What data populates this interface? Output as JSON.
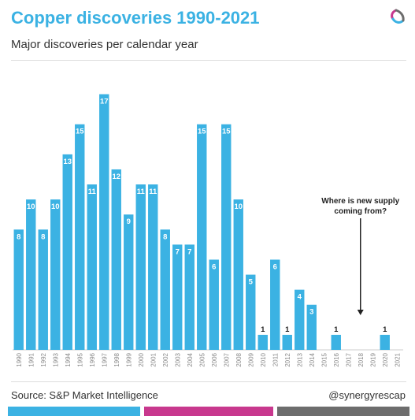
{
  "header": {
    "title": "Copper discoveries 1990-2021",
    "subtitle": "Major discoveries per calendar year"
  },
  "footer": {
    "source": "Source: S&P Market Intelligence",
    "handle": "@synergyrescap"
  },
  "colors": {
    "bar": "#3bb2e3",
    "title": "#3bb2e3",
    "stripe_blue": "#3bb2e3",
    "stripe_magenta": "#c8388e",
    "stripe_gray": "#6d6d6d",
    "annotation": "#222222"
  },
  "logo": {
    "icon": "synergy-logo-icon"
  },
  "chart_data": {
    "type": "bar",
    "categories": [
      "1990",
      "1991",
      "1992",
      "1993",
      "1994",
      "1995",
      "1996",
      "1997",
      "1998",
      "1999",
      "2000",
      "2001",
      "2002",
      "2003",
      "2004",
      "2005",
      "2006",
      "2007",
      "2008",
      "2009",
      "2010",
      "2011",
      "2012",
      "2013",
      "2014",
      "2015",
      "2016",
      "2017",
      "2018",
      "2019",
      "2020",
      "2021"
    ],
    "values": [
      8,
      10,
      8,
      10,
      13,
      15,
      11,
      17,
      12,
      9,
      11,
      11,
      8,
      7,
      7,
      15,
      6,
      15,
      10,
      5,
      1,
      6,
      1,
      4,
      3,
      0,
      1,
      0,
      0,
      0,
      1,
      0
    ],
    "data_labels": [
      "8",
      "10",
      "8",
      "10",
      "13",
      "15",
      "11",
      "17",
      "12",
      "9",
      "11",
      "11",
      "8",
      "7",
      "7",
      "15",
      "6",
      "15",
      "10",
      "5",
      "1",
      "6",
      "1",
      "4",
      "3",
      "",
      "1",
      "",
      "",
      "",
      "1",
      ""
    ],
    "ylim": [
      0,
      17.5
    ],
    "grid": false,
    "legend": "none",
    "annotation": {
      "lines": [
        "Where is new supply",
        "coming from?"
      ],
      "points_to": "2018"
    }
  }
}
